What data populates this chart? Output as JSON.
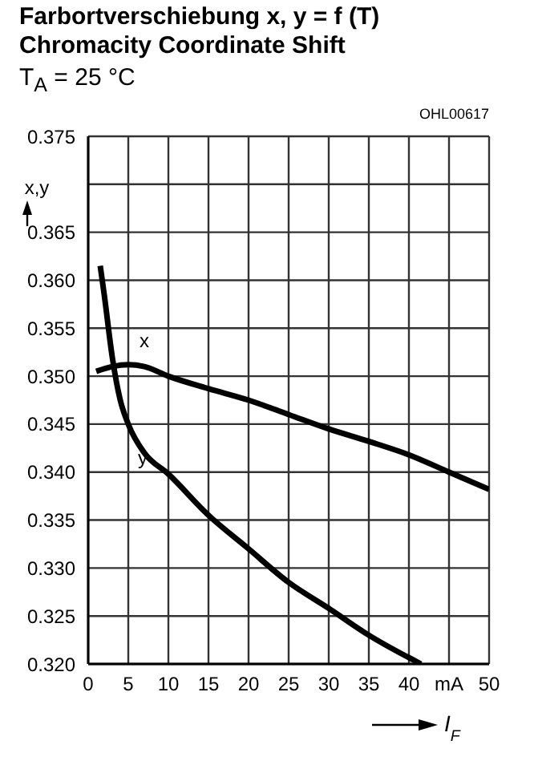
{
  "chart_data": {
    "type": "line",
    "title": "Farbortverschiebung x, y = f (T)",
    "subtitle": "Chromacity Coordinate Shift",
    "annotations": [
      "T$_{A}$ = 25 °C",
      "OHL00617"
    ],
    "xlabel": "I$_{F}$",
    "ylabel": "x,y",
    "xlim": [
      0,
      50
    ],
    "xticks": [
      0,
      5,
      10,
      15,
      20,
      25,
      30,
      35,
      40,
      {
        "value": 45,
        "label": "mA"
      },
      50
    ],
    "ylim": [
      0.32,
      0.375
    ],
    "yticks": [
      {
        "value": 0.32,
        "label": "0.320"
      },
      0.325,
      {
        "value": 0.33,
        "label": "0.330"
      },
      0.335,
      {
        "value": 0.34,
        "label": "0.340"
      },
      0.345,
      {
        "value": 0.35,
        "label": "0.350"
      },
      0.355,
      {
        "value": 0.36,
        "label": "0.360"
      },
      0.365,
      {
        "value": 0.37,
        "label": null
      },
      0.375
    ],
    "grid": true,
    "legend": false,
    "marker": "none",
    "line_style": "solid",
    "series": [
      {
        "name": "x",
        "color": "#000000",
        "x": [
          1,
          3,
          5,
          7,
          10,
          15,
          20,
          25,
          30,
          35,
          40,
          45,
          50
        ],
        "values": [
          0.3505,
          0.351,
          0.3512,
          0.351,
          0.35,
          0.3487,
          0.3475,
          0.346,
          0.3445,
          0.3432,
          0.3418,
          0.34,
          0.3382
        ]
      },
      {
        "name": "y",
        "color": "#000000",
        "x": [
          1.5,
          2,
          3,
          4,
          5,
          7,
          10,
          15,
          20,
          25,
          30,
          35,
          41.5
        ],
        "values": [
          0.3615,
          0.3585,
          0.352,
          0.3475,
          0.345,
          0.342,
          0.3398,
          0.3355,
          0.332,
          0.3285,
          0.3258,
          0.323,
          0.32
        ]
      }
    ]
  }
}
